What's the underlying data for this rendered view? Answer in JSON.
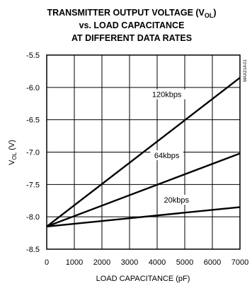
{
  "chart_data": {
    "type": "line",
    "title_lines": [
      "TRANSMITTER OUTPUT VOLTAGE (VOL)",
      "vs. LOAD CAPACITANCE",
      "AT DIFFERENT DATA RATES"
    ],
    "xlabel": "LOAD CAPACITANCE (pF)",
    "ylabel": "VOL (V)",
    "part_number": "MAX214-01",
    "xlim": [
      0,
      7000
    ],
    "ylim": [
      -8.5,
      -5.5
    ],
    "x_ticks": [
      0,
      1000,
      2000,
      3000,
      4000,
      5000,
      6000,
      7000
    ],
    "y_ticks": [
      -5.5,
      -6.0,
      -6.5,
      -7.0,
      -7.5,
      -8.0,
      -8.5
    ],
    "x_tick_labels": [
      "0",
      "1000",
      "2000",
      "3000",
      "4000",
      "5000",
      "6000",
      "7000"
    ],
    "y_tick_labels": [
      "-5.5",
      "-6.0",
      "-6.5",
      "-7.0",
      "-7.5",
      "-8.0",
      "-8.5"
    ],
    "grid": true,
    "series": [
      {
        "name": "120kbps",
        "x": [
          0,
          7000
        ],
        "y": [
          -8.15,
          -5.85
        ],
        "label_at": [
          4350,
          -6.14
        ]
      },
      {
        "name": "64kbps",
        "x": [
          0,
          7000
        ],
        "y": [
          -8.15,
          -7.02
        ],
        "label_at": [
          4350,
          -7.08
        ]
      },
      {
        "name": "20kbps",
        "x": [
          0,
          7000
        ],
        "y": [
          -8.15,
          -7.85
        ],
        "label_at": [
          4700,
          -7.77
        ]
      }
    ]
  }
}
